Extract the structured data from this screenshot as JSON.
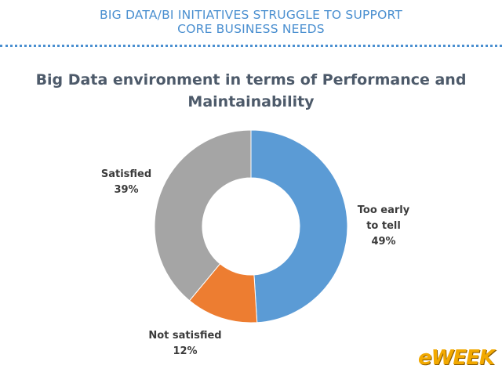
{
  "header": {
    "line1": "BIG DATA/BI INITIATIVES STRUGGLE TO SUPPORT",
    "line2": "CORE BUSINESS NEEDS"
  },
  "chart_data": {
    "type": "pie",
    "donut": true,
    "title_lines": [
      "Big Data environment in terms of Performance and",
      "Maintainability"
    ],
    "slices": [
      {
        "label_lines": [
          "Too early",
          "to tell"
        ],
        "value": 49,
        "value_label": "49%",
        "color": "#5b9bd5"
      },
      {
        "label_lines": [
          "Not satisfied"
        ],
        "value": 12,
        "value_label": "12%",
        "color": "#ed7d31"
      },
      {
        "label_lines": [
          "Satisfied"
        ],
        "value": 39,
        "value_label": "39%",
        "color": "#a5a5a5"
      }
    ]
  },
  "logo": {
    "text": "eWEEK",
    "color": "#f2a900"
  }
}
